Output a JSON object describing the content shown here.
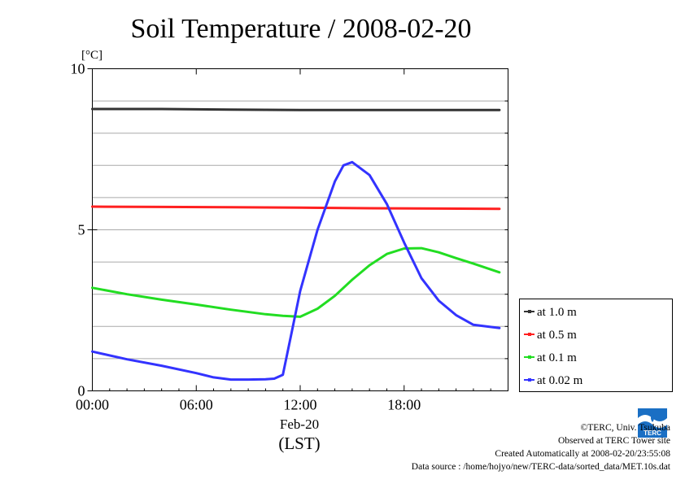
{
  "chart_data": {
    "type": "line",
    "title": "Soil Temperature / 2008-02-20",
    "ylabel": "[°C]",
    "xlabel_date": "Feb-20",
    "xlabel_tz": "(LST)",
    "xlim": [
      0,
      24
    ],
    "ylim": [
      0,
      10
    ],
    "xticks": [
      {
        "x": 0,
        "label": "00:00"
      },
      {
        "x": 6,
        "label": "06:00"
      },
      {
        "x": 12,
        "label": "12:00"
      },
      {
        "x": 18,
        "label": "18:00"
      }
    ],
    "yticks": [
      {
        "y": 0,
        "label": "0"
      },
      {
        "y": 5,
        "label": "5"
      },
      {
        "y": 10,
        "label": "10"
      }
    ],
    "grid": true,
    "legend_position": "right",
    "series": [
      {
        "name": "at 1.0 m",
        "color": "#333333",
        "x": [
          0,
          4,
          8,
          12,
          16,
          20,
          23.5
        ],
        "y": [
          8.75,
          8.75,
          8.73,
          8.72,
          8.72,
          8.72,
          8.72
        ]
      },
      {
        "name": "at 0.5 m",
        "color": "#ff2020",
        "x": [
          0,
          4,
          8,
          12,
          16,
          20,
          23.5
        ],
        "y": [
          5.72,
          5.71,
          5.7,
          5.69,
          5.67,
          5.66,
          5.65
        ]
      },
      {
        "name": "at 0.1 m",
        "color": "#22dd22",
        "x": [
          0,
          2,
          4,
          6,
          8,
          10,
          11,
          12,
          13,
          14,
          15,
          16,
          17,
          18,
          19,
          20,
          21,
          22,
          23.5
        ],
        "y": [
          3.2,
          3.0,
          2.83,
          2.68,
          2.52,
          2.38,
          2.33,
          2.3,
          2.55,
          2.95,
          3.45,
          3.9,
          4.25,
          4.42,
          4.43,
          4.3,
          4.12,
          3.95,
          3.68
        ]
      },
      {
        "name": "at 0.02 m",
        "color": "#3333ff",
        "x": [
          0,
          2,
          4,
          6,
          7,
          8,
          9,
          10,
          10.5,
          11,
          11.5,
          12,
          13,
          14,
          14.5,
          15,
          16,
          17,
          18,
          19,
          20,
          21,
          22,
          23.5
        ],
        "y": [
          1.22,
          0.98,
          0.78,
          0.55,
          0.42,
          0.35,
          0.35,
          0.36,
          0.38,
          0.5,
          1.8,
          3.1,
          5.0,
          6.5,
          7.0,
          7.1,
          6.7,
          5.8,
          4.6,
          3.5,
          2.8,
          2.35,
          2.05,
          1.95
        ]
      }
    ]
  },
  "footer": {
    "copyright": "©TERC, Univ. Tsukuba",
    "observed": "Observed at TERC Tower site",
    "created": "Created Automatically at 2008-02-20/23:55:08",
    "source": "Data source : /home/hojyo/new/TERC-data/sorted_data/MET.10s.dat",
    "logo_text": "TERC"
  }
}
